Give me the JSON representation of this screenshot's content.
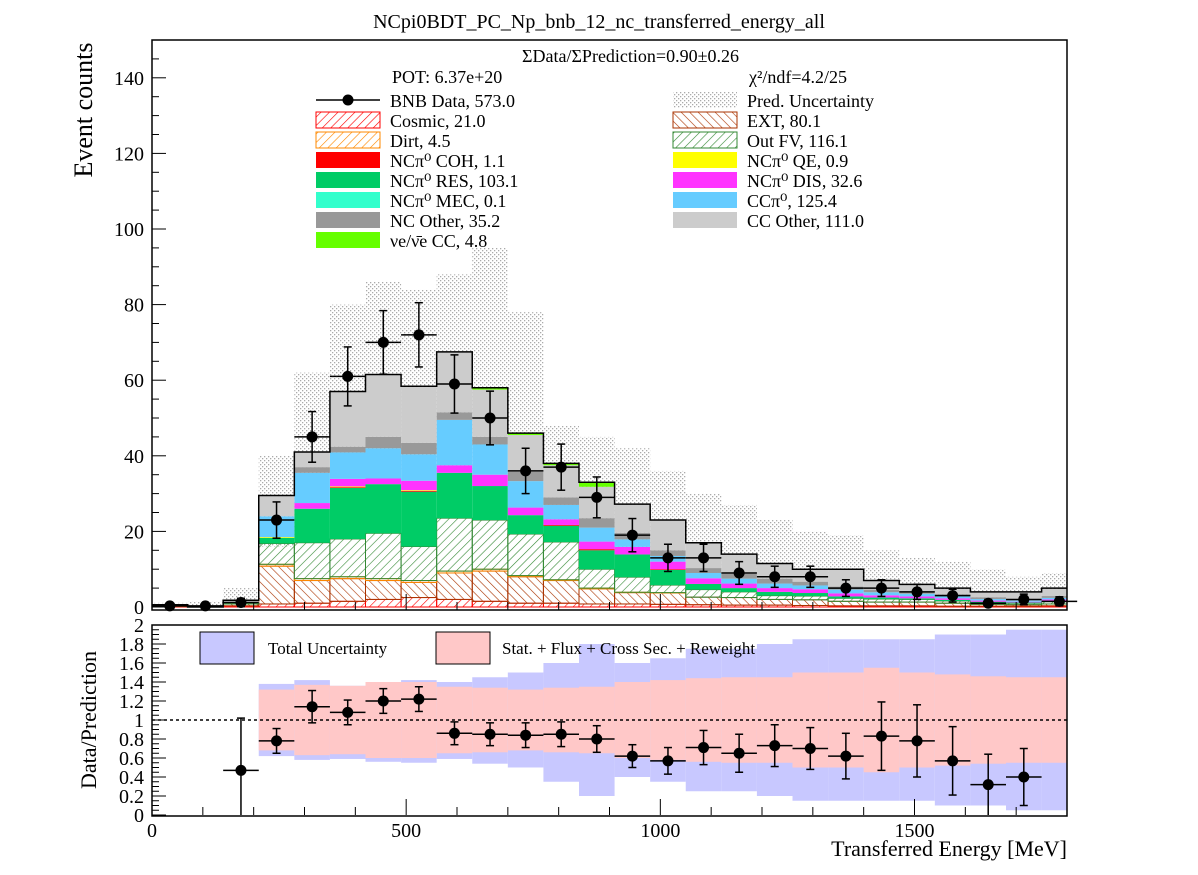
{
  "chart_data": [
    {
      "type": "bar",
      "stacked": true,
      "title": "NCpi0BDT_PC_Np_bnb_12_nc_transferred_energy_all",
      "ylabel": "Event counts",
      "xlim": [
        0,
        1800
      ],
      "ylim": [
        0,
        150
      ],
      "yticks": [
        0,
        20,
        40,
        60,
        80,
        100,
        120,
        140
      ],
      "bin_width": 70,
      "x": [
        35,
        105,
        175,
        245,
        315,
        385,
        455,
        525,
        595,
        665,
        735,
        805,
        875,
        945,
        1015,
        1085,
        1155,
        1225,
        1295,
        1365,
        1435,
        1505,
        1575,
        1645,
        1715,
        1785
      ],
      "annotations": {
        "ratio": "ΣData/ΣPrediction=0.90±0.26",
        "pot": "POT: 6.37e+20",
        "chi2": "χ²/ndf=4.2/25"
      },
      "legend_left": [
        {
          "key": "data",
          "label": "BNB Data, 573.0",
          "color": "#000000",
          "style": "marker"
        },
        {
          "key": "cosmic",
          "label": "Cosmic, 21.0",
          "color": "#ff0000",
          "style": "hatch"
        },
        {
          "key": "dirt",
          "label": "Dirt, 4.5",
          "color": "#ff8800",
          "style": "hatch"
        },
        {
          "key": "coh",
          "label": "NCπ⁰ COH,  1.1",
          "color": "#ff0000",
          "style": "fill"
        },
        {
          "key": "res",
          "label": "NCπ⁰ RES,  103.1",
          "color": "#00cc66",
          "style": "fill"
        },
        {
          "key": "mec",
          "label": "NCπ⁰ MEC,  0.1",
          "color": "#33ffcc",
          "style": "fill"
        },
        {
          "key": "ncother",
          "label": "NC Other, 35.2",
          "color": "#999999",
          "style": "fill"
        },
        {
          "key": "nue",
          "label": "νe/ν̄e CC, 4.8",
          "color": "#66ff00",
          "style": "fill"
        }
      ],
      "legend_right": [
        {
          "key": "unc",
          "label": "Pred. Uncertainty",
          "color": "#bbbbbb",
          "style": "dots"
        },
        {
          "key": "ext",
          "label": "EXT, 80.1",
          "color": "#aa3300",
          "style": "hatch"
        },
        {
          "key": "outfv",
          "label": "Out FV, 116.1",
          "color": "#338833",
          "style": "hatch"
        },
        {
          "key": "qe",
          "label": "NCπ⁰ QE,  0.9",
          "color": "#ffff00",
          "style": "fill"
        },
        {
          "key": "dis",
          "label": "NCπ⁰ DIS,  32.6",
          "color": "#ff33ff",
          "style": "fill"
        },
        {
          "key": "ccpi0",
          "label": "CCπ⁰, 125.4",
          "color": "#66ccff",
          "style": "fill"
        },
        {
          "key": "ccother",
          "label": "CC Other, 111.0",
          "color": "#cccccc",
          "style": "fill"
        }
      ],
      "stack_order": [
        "cosmic",
        "ext",
        "dirt",
        "outfv",
        "res",
        "coh",
        "qe",
        "mec",
        "dis",
        "ccpi0",
        "ncother",
        "ccother",
        "nue"
      ],
      "series": [
        {
          "key": "cosmic",
          "values": [
            0.1,
            0,
            0.3,
            0.8,
            1,
            1.5,
            2,
            2.5,
            2,
            1.5,
            1,
            1,
            0.8,
            0.8,
            0.7,
            0.6,
            0.5,
            0.5,
            0.4,
            0.3,
            0.3,
            0.3,
            0.2,
            0.2,
            0.2,
            0.3
          ]
        },
        {
          "key": "ext",
          "values": [
            0.4,
            0,
            0.5,
            10,
            6,
            6,
            5,
            4,
            7,
            8,
            7,
            6,
            4,
            3,
            3,
            2,
            2,
            1.5,
            1.5,
            1.2,
            1,
            1,
            0.8,
            0.5,
            0.4,
            0.5
          ]
        },
        {
          "key": "dirt",
          "values": [
            0,
            0,
            0,
            0.5,
            0.5,
            0.5,
            0.5,
            0.5,
            0.5,
            0.5,
            0.3,
            0.2,
            0.2,
            0.1,
            0.1,
            0,
            0,
            0,
            0,
            0,
            0,
            0,
            0,
            0,
            0,
            0
          ]
        },
        {
          "key": "outfv",
          "values": [
            0,
            0,
            0.3,
            5.5,
            9.5,
            10,
            12,
            9,
            14,
            13,
            11,
            10,
            5,
            4,
            2,
            2,
            1.5,
            1,
            1,
            0.8,
            0.8,
            0.7,
            0.6,
            0.5,
            0.4,
            0.6
          ]
        },
        {
          "key": "res",
          "values": [
            0,
            0,
            0,
            1.5,
            9,
            13.5,
            13,
            14.5,
            12,
            9,
            5,
            4.3,
            5,
            6,
            4,
            1.5,
            1,
            1,
            0.8,
            0.5,
            0.4,
            0.3,
            0.3,
            0.2,
            0.2,
            0.3
          ]
        },
        {
          "key": "coh",
          "values": [
            0,
            0,
            0,
            0,
            0,
            0.2,
            0,
            0.2,
            0,
            0,
            0,
            0.2,
            0.3,
            0,
            0.2,
            0,
            0,
            0,
            0,
            0,
            0,
            0,
            0,
            0,
            0,
            0
          ]
        },
        {
          "key": "qe",
          "values": [
            0,
            0,
            0,
            0.2,
            0,
            0.2,
            0,
            0.2,
            0,
            0,
            0,
            0,
            0,
            0,
            0,
            0,
            0,
            0,
            0,
            0,
            0,
            0,
            0,
            0,
            0,
            0
          ]
        },
        {
          "key": "mec",
          "values": [
            0,
            0,
            0,
            0,
            0,
            0,
            0,
            0,
            0,
            0,
            0,
            0,
            0,
            0,
            0,
            0,
            0,
            0,
            0,
            0,
            0,
            0,
            0,
            0,
            0,
            0
          ]
        },
        {
          "key": "dis",
          "values": [
            0,
            0,
            0,
            0,
            1.5,
            2,
            1.5,
            2.5,
            2,
            3,
            2,
            1.5,
            2,
            2,
            2,
            1.5,
            1.2,
            1,
            1,
            0.8,
            0.6,
            0.5,
            0.4,
            0.3,
            0.2,
            0.3
          ]
        },
        {
          "key": "ccpi0",
          "values": [
            0,
            0,
            0,
            5.5,
            8,
            7,
            8,
            7,
            12,
            8,
            7,
            3.8,
            3.7,
            2,
            1.5,
            1.4,
            1.3,
            1.2,
            1,
            1,
            0.8,
            0.7,
            0.5,
            0.4,
            0.3,
            0.4
          ]
        },
        {
          "key": "ncother",
          "values": [
            0,
            0,
            0,
            0,
            1.5,
            1.5,
            3,
            3,
            2,
            2,
            2.5,
            2,
            2.5,
            1.7,
            1.5,
            1.3,
            1.3,
            1.3,
            1,
            0.8,
            0.7,
            0.7,
            0.6,
            0.5,
            0.4,
            0.5
          ]
        },
        {
          "key": "ccother",
          "values": [
            0.1,
            0,
            0.7,
            5.5,
            4,
            14.5,
            16.5,
            15,
            16,
            12.5,
            9.7,
            8.5,
            8.3,
            7.6,
            8,
            6.7,
            5.2,
            4,
            3.3,
            4.6,
            2.4,
            1.8,
            1.6,
            1.4,
            1.9,
            2.1
          ]
        },
        {
          "key": "nue",
          "values": [
            0,
            0,
            0,
            0,
            0,
            0.1,
            0,
            0,
            0,
            0.5,
            0.5,
            0.5,
            1.2,
            0,
            0,
            0,
            0,
            0,
            0,
            0,
            0,
            0,
            0,
            0,
            0,
            0
          ]
        }
      ],
      "uncertainty_band": {
        "lower": [
          0.6,
          0.2,
          1,
          16,
          29,
          38,
          36,
          36,
          36,
          42,
          37,
          19,
          20,
          15,
          13,
          11,
          10,
          7,
          6,
          5.5,
          4,
          3.5,
          3,
          2.5,
          2,
          3.5
        ],
        "upper": [
          1.1,
          1.5,
          5,
          40,
          62,
          80,
          86,
          84,
          88,
          95,
          78,
          48,
          45,
          42,
          36,
          30,
          27,
          23,
          20,
          19,
          15,
          13,
          12,
          10,
          8,
          9
        ]
      },
      "data_points": {
        "x": [
          35,
          105,
          175,
          245,
          315,
          385,
          455,
          525,
          595,
          665,
          735,
          805,
          875,
          945,
          1015,
          1085,
          1155,
          1225,
          1295,
          1365,
          1435,
          1505,
          1575,
          1645,
          1715,
          1785
        ],
        "y": [
          0.3,
          0.3,
          1.2,
          23,
          45,
          61,
          70,
          72,
          59,
          50,
          36,
          37,
          29,
          19,
          13,
          13,
          9,
          8,
          8,
          5,
          5,
          4,
          3,
          1,
          2,
          1.5
        ],
        "err": [
          0.5,
          0.5,
          1.1,
          4.8,
          6.7,
          7.8,
          8.4,
          8.5,
          7.7,
          7.1,
          6,
          6.1,
          5.4,
          4.4,
          3.6,
          3.6,
          3,
          2.8,
          2.8,
          2.2,
          2.2,
          2,
          1.7,
          1,
          1.4,
          1.2
        ]
      }
    },
    {
      "type": "scatter",
      "xlabel": "Transferred Energy [MeV]",
      "ylabel": "Data/Prediction",
      "xlim": [
        0,
        1800
      ],
      "ylim": [
        0,
        2
      ],
      "yticks": [
        0,
        0.2,
        0.4,
        0.6,
        0.8,
        1,
        1.2,
        1.4,
        1.6,
        1.8,
        2
      ],
      "yticklabels": [
        "0",
        "0.2",
        "0.4",
        "0.6",
        "0.8",
        "1",
        "1.2",
        "1.4",
        "1.6",
        "1.8",
        "2"
      ],
      "xticks": [
        0,
        500,
        1000,
        1500
      ],
      "xticklabels": [
        "0",
        "500",
        "1000",
        "1500"
      ],
      "reference_line": 1,
      "legend": [
        {
          "label": "Total Uncertainty",
          "color": "#c8c8ff"
        },
        {
          "label": "Stat. + Flux + Cross Sec. + Reweight",
          "color": "#ffc8c8"
        }
      ],
      "total_band": {
        "lower": [
          0,
          0,
          0,
          0.62,
          0.58,
          0.59,
          0.56,
          0.55,
          0.59,
          0.54,
          0.5,
          0.35,
          0.2,
          0.4,
          0.35,
          0.25,
          0.25,
          0.2,
          0.15,
          0.15,
          0.15,
          0.15,
          0.1,
          0.1,
          0.05,
          0.05
        ],
        "upper": [
          0,
          0,
          0,
          1.38,
          1.42,
          1.36,
          1.4,
          1.42,
          1.4,
          1.45,
          1.5,
          1.6,
          1.8,
          1.6,
          1.65,
          1.75,
          1.75,
          1.8,
          1.85,
          1.85,
          1.85,
          1.85,
          1.9,
          1.9,
          1.95,
          1.95
        ]
      },
      "stat_band": {
        "lower": [
          0,
          0,
          0,
          0.68,
          0.63,
          0.64,
          0.6,
          0.6,
          0.65,
          0.66,
          0.68,
          0.66,
          0.65,
          0.6,
          0.58,
          0.56,
          0.55,
          0.55,
          0.5,
          0.5,
          0.45,
          0.5,
          0.52,
          0.54,
          0.55,
          0.55
        ],
        "upper": [
          0,
          0,
          0,
          1.32,
          1.37,
          1.36,
          1.4,
          1.4,
          1.35,
          1.34,
          1.32,
          1.34,
          1.35,
          1.4,
          1.42,
          1.44,
          1.45,
          1.45,
          1.5,
          1.5,
          1.55,
          1.5,
          1.48,
          1.46,
          1.45,
          1.45
        ]
      },
      "points": {
        "x": [
          175,
          245,
          315,
          385,
          455,
          525,
          595,
          665,
          735,
          805,
          875,
          945,
          1015,
          1085,
          1155,
          1225,
          1295,
          1365,
          1435,
          1505,
          1575,
          1645,
          1715
        ],
        "y": [
          0.47,
          0.78,
          1.14,
          1.08,
          1.2,
          1.22,
          0.86,
          0.85,
          0.84,
          0.85,
          0.8,
          0.62,
          0.57,
          0.71,
          0.65,
          0.73,
          0.7,
          0.62,
          0.83,
          0.78,
          0.57,
          0.32,
          0.4
        ],
        "err": [
          0.55,
          0.13,
          0.17,
          0.13,
          0.13,
          0.13,
          0.12,
          0.12,
          0.13,
          0.13,
          0.14,
          0.12,
          0.14,
          0.18,
          0.2,
          0.22,
          0.22,
          0.24,
          0.36,
          0.38,
          0.36,
          0.32,
          0.3
        ]
      }
    }
  ]
}
